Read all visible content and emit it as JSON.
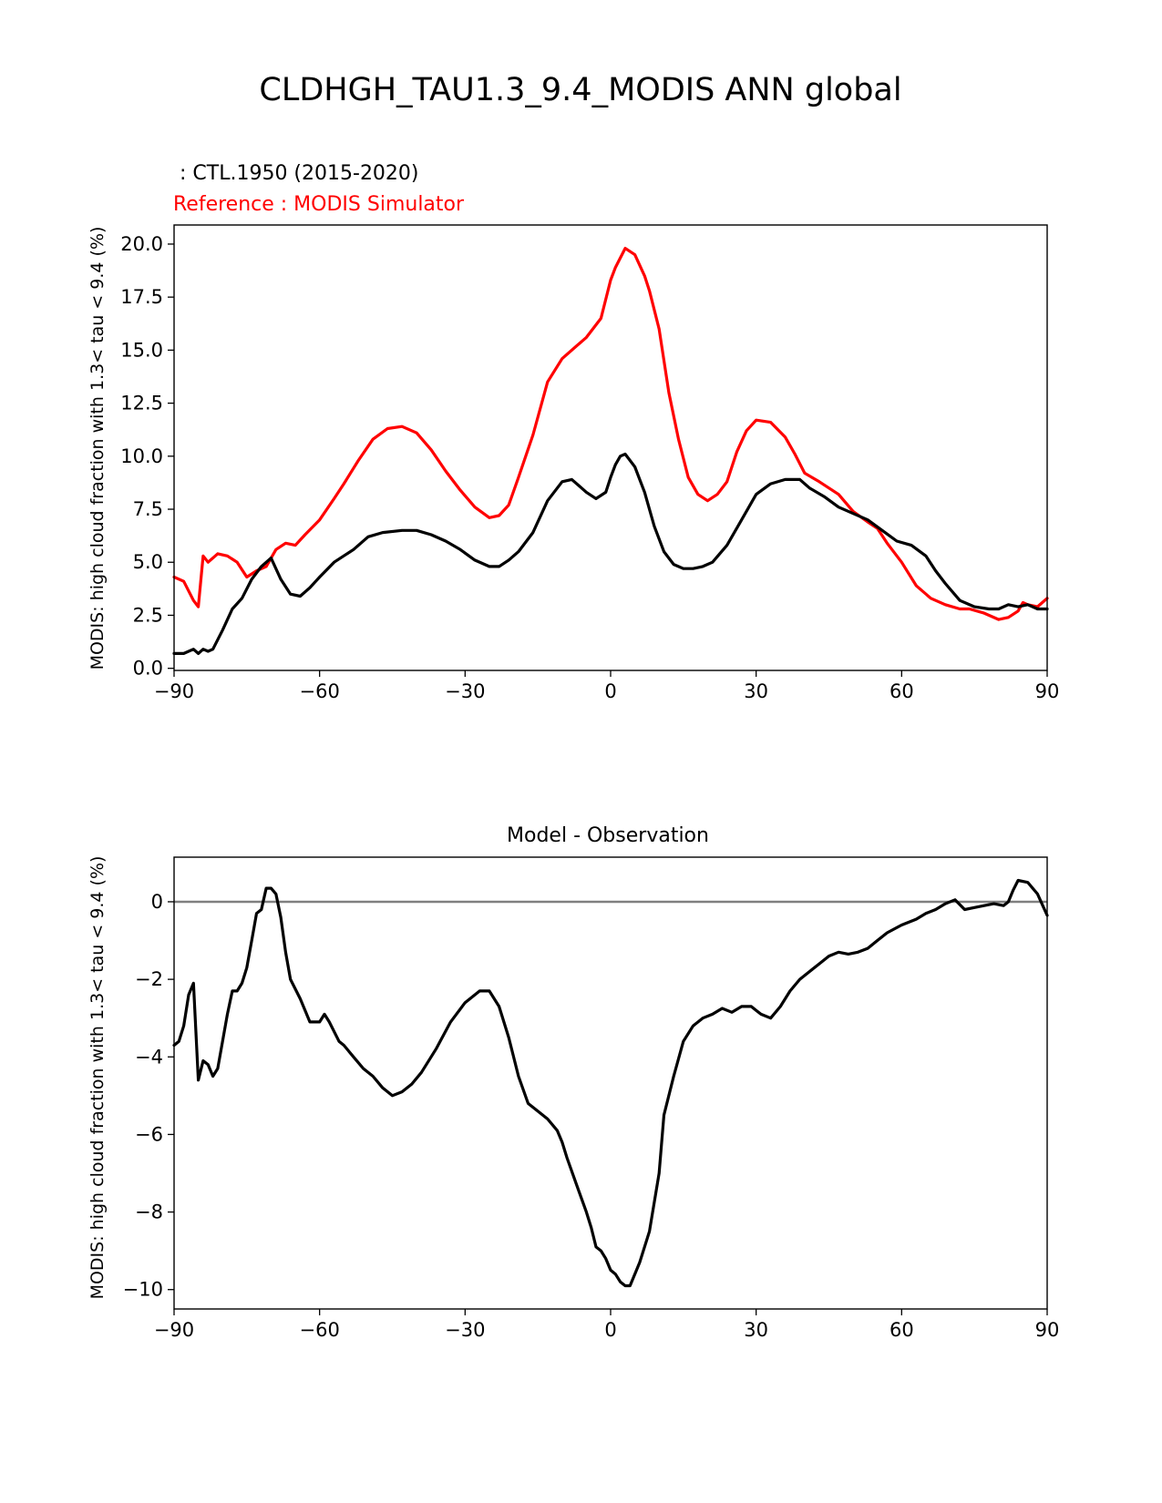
{
  "figure": {
    "title": "CLDHGH_TAU1.3_9.4_MODIS ANN global"
  },
  "colors": {
    "test": "#000000",
    "reference": "#ff0000",
    "zero_line": "#808080",
    "axis": "#000000"
  },
  "chart_data": [
    {
      "type": "line",
      "test_label": " : CTL.1950 (2015-2020)",
      "ref_label": "Reference : MODIS Simulator",
      "ylabel": "MODIS: high cloud fraction with 1.3< tau < 9.4 (%)",
      "xlim": [
        -90,
        90
      ],
      "ylim": [
        -0.1,
        20.9
      ],
      "xticks": [
        -90,
        -60,
        -30,
        0,
        30,
        60,
        90
      ],
      "xtick_labels": [
        "−90",
        "−60",
        "−30",
        "0",
        "30",
        "60",
        "90"
      ],
      "yticks": [
        0,
        2.5,
        5,
        7.5,
        10,
        12.5,
        15,
        17.5,
        20
      ],
      "ytick_labels": [
        "0.0",
        "2.5",
        "5.0",
        "7.5",
        "10.0",
        "12.5",
        "15.0",
        "17.5",
        "20.0"
      ],
      "series": [
        {
          "name": "Reference : MODIS Simulator",
          "color": "#ff0000",
          "x": [
            -90,
            -88,
            -86,
            -85,
            -84,
            -83,
            -82,
            -81,
            -79,
            -77,
            -75,
            -73,
            -71,
            -69,
            -67,
            -65,
            -63,
            -60,
            -57,
            -55,
            -52,
            -49,
            -46,
            -43,
            -40,
            -37,
            -34,
            -31,
            -28,
            -25,
            -23,
            -21,
            -19,
            -16,
            -13,
            -10,
            -7,
            -5,
            -2,
            0,
            1,
            3,
            5,
            7,
            8,
            10,
            12,
            14,
            16,
            18,
            20,
            22,
            24,
            26,
            28,
            30,
            33,
            36,
            38,
            40,
            43,
            47,
            50,
            53,
            55,
            57,
            60,
            63,
            66,
            69,
            72,
            74,
            77,
            80,
            82,
            84,
            85,
            86,
            88,
            90
          ],
          "values": [
            4.3,
            4.1,
            3.2,
            2.9,
            5.3,
            5.0,
            5.2,
            5.4,
            5.3,
            5.0,
            4.3,
            4.6,
            4.8,
            5.6,
            5.9,
            5.8,
            6.3,
            7.0,
            8.0,
            8.7,
            9.8,
            10.8,
            11.3,
            11.4,
            11.1,
            10.3,
            9.3,
            8.4,
            7.6,
            7.1,
            7.2,
            7.7,
            9.0,
            11.0,
            13.5,
            14.6,
            15.2,
            15.6,
            16.5,
            18.3,
            18.9,
            19.8,
            19.5,
            18.5,
            17.8,
            16.0,
            13.0,
            10.8,
            9.0,
            8.2,
            7.9,
            8.2,
            8.8,
            10.2,
            11.2,
            11.7,
            11.6,
            10.9,
            10.1,
            9.2,
            8.8,
            8.2,
            7.4,
            6.9,
            6.6,
            5.9,
            5.0,
            3.9,
            3.3,
            3.0,
            2.8,
            2.8,
            2.6,
            2.3,
            2.4,
            2.7,
            3.1,
            3.0,
            2.9,
            3.3
          ]
        },
        {
          "name": " : CTL.1950 (2015-2020)",
          "color": "#000000",
          "x": [
            -90,
            -88,
            -86,
            -85,
            -84,
            -83,
            -82,
            -80,
            -78,
            -76,
            -74,
            -72,
            -70,
            -68,
            -66,
            -64,
            -62,
            -60,
            -57,
            -53,
            -50,
            -47,
            -43,
            -40,
            -37,
            -34,
            -31,
            -28,
            -25,
            -23,
            -21,
            -19,
            -16,
            -13,
            -10,
            -8,
            -5,
            -3,
            -1,
            0,
            1,
            2,
            3,
            5,
            7,
            9,
            11,
            13,
            15,
            17,
            19,
            21,
            24,
            27,
            30,
            33,
            36,
            39,
            41,
            44,
            47,
            50,
            53,
            56,
            59,
            62,
            65,
            67,
            69,
            72,
            75,
            78,
            80,
            82,
            84,
            86,
            88,
            90
          ],
          "values": [
            0.7,
            0.7,
            0.9,
            0.7,
            0.9,
            0.8,
            0.9,
            1.8,
            2.8,
            3.3,
            4.2,
            4.8,
            5.2,
            4.2,
            3.5,
            3.4,
            3.8,
            4.3,
            5.0,
            5.6,
            6.2,
            6.4,
            6.5,
            6.5,
            6.3,
            6.0,
            5.6,
            5.1,
            4.8,
            4.8,
            5.1,
            5.5,
            6.4,
            7.9,
            8.8,
            8.9,
            8.3,
            8.0,
            8.3,
            9.0,
            9.6,
            10.0,
            10.1,
            9.5,
            8.3,
            6.7,
            5.5,
            4.9,
            4.7,
            4.7,
            4.8,
            5.0,
            5.8,
            7.0,
            8.2,
            8.7,
            8.9,
            8.9,
            8.5,
            8.1,
            7.6,
            7.3,
            7.0,
            6.5,
            6.0,
            5.8,
            5.3,
            4.6,
            4.0,
            3.2,
            2.9,
            2.8,
            2.8,
            3.0,
            2.9,
            3.0,
            2.8,
            2.8
          ]
        }
      ]
    },
    {
      "type": "line",
      "title": "Model - Observation",
      "ylabel": "MODIS: high cloud fraction with 1.3< tau < 9.4 (%)",
      "xlim": [
        -90,
        90
      ],
      "ylim": [
        -10.5,
        1.15
      ],
      "xticks": [
        -90,
        -60,
        -30,
        0,
        30,
        60,
        90
      ],
      "xtick_labels": [
        "−90",
        "−60",
        "−30",
        "0",
        "30",
        "60",
        "90"
      ],
      "yticks": [
        0,
        -2,
        -4,
        -6,
        -8,
        -10
      ],
      "ytick_labels": [
        "0",
        "−2",
        "−4",
        "−6",
        "−8",
        "−10"
      ],
      "zero_line": 0,
      "series": [
        {
          "name": "Model - Observation",
          "color": "#000000",
          "x": [
            -90,
            -89,
            -88,
            -87,
            -86,
            -85,
            -84,
            -83,
            -82,
            -81,
            -79,
            -78,
            -77,
            -76,
            -75,
            -74,
            -73,
            -72,
            -71,
            -70,
            -69,
            -68,
            -67,
            -66,
            -64,
            -62,
            -60,
            -59,
            -58,
            -56,
            -55,
            -53,
            -51,
            -49,
            -47,
            -45,
            -43,
            -41,
            -39,
            -36,
            -33,
            -30,
            -27,
            -25,
            -23,
            -21,
            -19,
            -17,
            -15,
            -13,
            -11,
            -10,
            -9,
            -7,
            -5,
            -4,
            -3,
            -2,
            -1,
            0,
            1,
            2,
            3,
            4,
            6,
            8,
            10,
            11,
            13,
            15,
            17,
            19,
            21,
            23,
            25,
            27,
            29,
            30,
            31,
            33,
            35,
            37,
            39,
            41,
            43,
            45,
            47,
            49,
            51,
            53,
            55,
            57,
            60,
            63,
            65,
            67,
            69,
            71,
            73,
            75,
            77,
            79,
            81,
            82,
            83,
            84,
            86,
            88,
            90
          ],
          "values": [
            -3.7,
            -3.6,
            -3.2,
            -2.4,
            -2.1,
            -4.6,
            -4.1,
            -4.2,
            -4.5,
            -4.3,
            -2.9,
            -2.3,
            -2.3,
            -2.1,
            -1.7,
            -1.0,
            -0.3,
            -0.2,
            0.35,
            0.35,
            0.2,
            -0.4,
            -1.3,
            -2.0,
            -2.5,
            -3.1,
            -3.1,
            -2.9,
            -3.1,
            -3.6,
            -3.7,
            -4.0,
            -4.3,
            -4.5,
            -4.8,
            -5.0,
            -4.9,
            -4.7,
            -4.4,
            -3.8,
            -3.1,
            -2.6,
            -2.3,
            -2.3,
            -2.7,
            -3.5,
            -4.5,
            -5.2,
            -5.4,
            -5.6,
            -5.9,
            -6.2,
            -6.6,
            -7.3,
            -8.0,
            -8.4,
            -8.9,
            -9.0,
            -9.2,
            -9.5,
            -9.6,
            -9.8,
            -9.9,
            -9.9,
            -9.3,
            -8.5,
            -7.0,
            -5.5,
            -4.5,
            -3.6,
            -3.2,
            -3.0,
            -2.9,
            -2.75,
            -2.85,
            -2.7,
            -2.7,
            -2.8,
            -2.9,
            -3.0,
            -2.7,
            -2.3,
            -2.0,
            -1.8,
            -1.6,
            -1.4,
            -1.3,
            -1.35,
            -1.3,
            -1.2,
            -1.0,
            -0.8,
            -0.6,
            -0.45,
            -0.3,
            -0.2,
            -0.05,
            0.05,
            -0.2,
            -0.15,
            -0.1,
            -0.05,
            -0.1,
            0.0,
            0.3,
            0.55,
            0.5,
            0.2,
            -0.35
          ]
        }
      ]
    }
  ]
}
